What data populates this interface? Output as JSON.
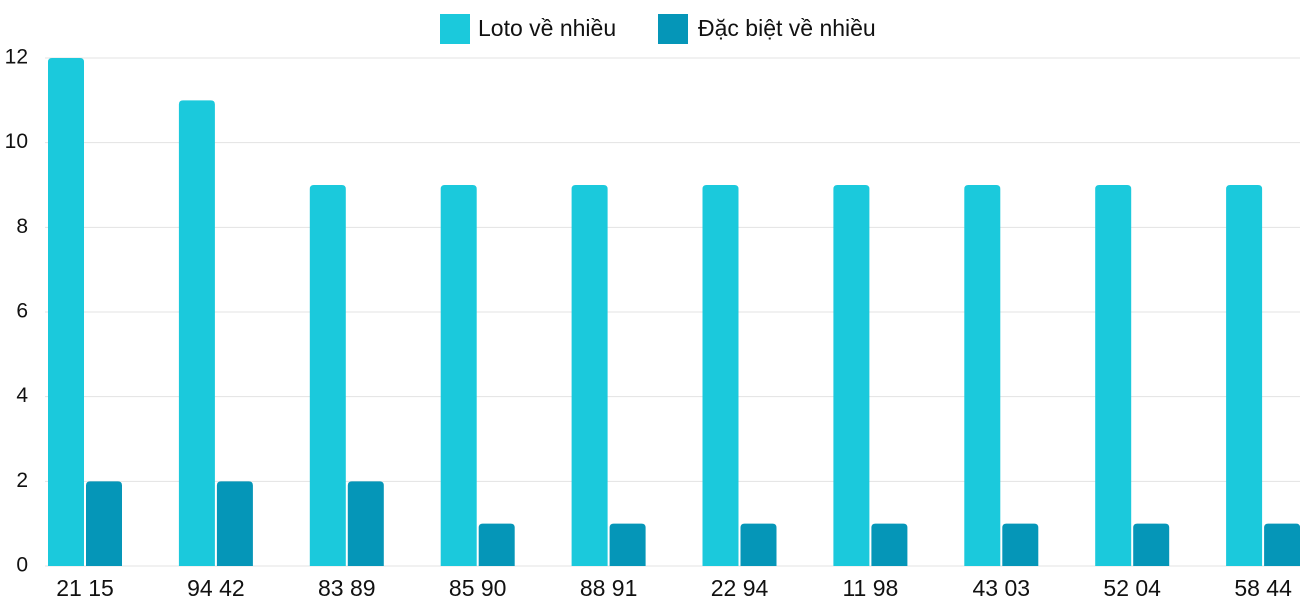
{
  "chart_data": {
    "type": "bar",
    "categories": [
      "21 15",
      "94 42",
      "83 89",
      "85 90",
      "88 91",
      "22 94",
      "11 98",
      "43 03",
      "52 04",
      "58 44"
    ],
    "series": [
      {
        "name": "Loto về nhiều",
        "color": "#1bc9dc",
        "values": [
          12,
          11,
          9,
          9,
          9,
          9,
          9,
          9,
          9,
          9
        ]
      },
      {
        "name": "Đặc biệt về nhiều",
        "color": "#0596b8",
        "values": [
          2,
          2,
          2,
          1,
          1,
          1,
          1,
          1,
          1,
          1
        ]
      }
    ],
    "ylim": [
      0,
      12
    ],
    "yticks": [
      0,
      2,
      4,
      6,
      8,
      10,
      12
    ],
    "grid": true,
    "legend": "top"
  }
}
